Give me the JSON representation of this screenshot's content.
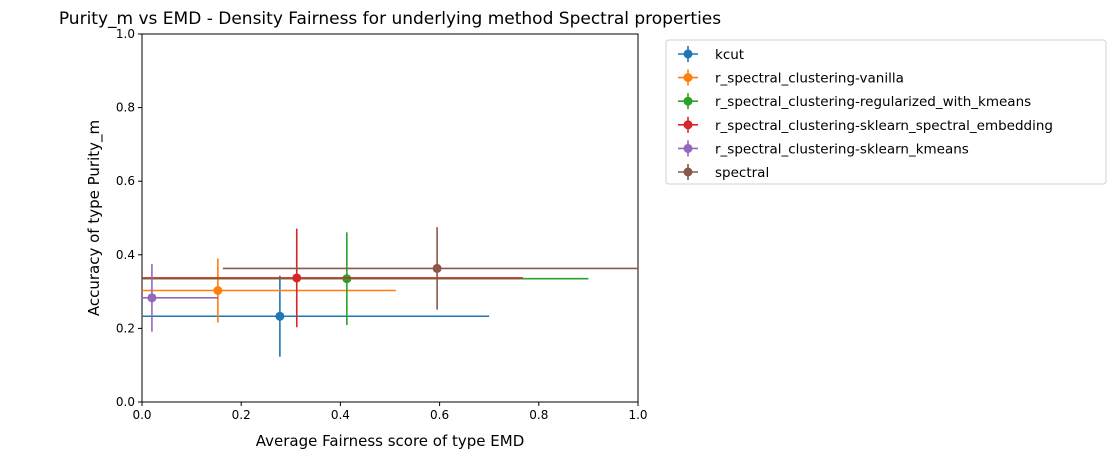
{
  "chart_data": {
    "type": "scatter",
    "title": "Purity_m vs EMD - Density Fairness for underlying method Spectral properties",
    "xlabel": "Average Fairness score of type EMD",
    "ylabel": "Accuracy of type Purity_m",
    "xlim": [
      0,
      1
    ],
    "ylim": [
      0,
      1
    ],
    "xticks": [
      "0.0",
      "0.2",
      "0.4",
      "0.6",
      "0.8",
      "1.0"
    ],
    "yticks": [
      "0.0",
      "0.2",
      "0.4",
      "0.6",
      "0.8",
      "1.0"
    ],
    "grid": false,
    "legend_position": "outside-right",
    "series": [
      {
        "name": "kcut",
        "color": "#1f77b4",
        "x": 0.278,
        "y": 0.233,
        "x_err": [
          0.278,
          0.422
        ],
        "y_err": [
          0.11,
          0.11
        ]
      },
      {
        "name": "r_spectral_clustering-vanilla",
        "color": "#ff7f0e",
        "x": 0.153,
        "y": 0.303,
        "x_err": [
          0.153,
          0.359
        ],
        "y_err": [
          0.087,
          0.087
        ]
      },
      {
        "name": "r_spectral_clustering-regularized_with_kmeans",
        "color": "#2ca02c",
        "x": 0.413,
        "y": 0.335,
        "x_err": [
          0.413,
          0.487
        ],
        "y_err": [
          0.126,
          0.126
        ]
      },
      {
        "name": "r_spectral_clustering-sklearn_spectral_embedding",
        "color": "#d62728",
        "x": 0.312,
        "y": 0.337,
        "x_err": [
          0.312,
          0.456
        ],
        "y_err": [
          0.134,
          0.134
        ]
      },
      {
        "name": "r_spectral_clustering-sklearn_kmeans",
        "color": "#9467bd",
        "x": 0.02,
        "y": 0.283,
        "x_err": [
          0.02,
          0.133
        ],
        "y_err": [
          0.092,
          0.092
        ]
      },
      {
        "name": "spectral",
        "color": "#8c564b",
        "x": 0.595,
        "y": 0.363,
        "x_err": [
          0.432,
          0.432
        ],
        "y_err": [
          0.112,
          0.112
        ]
      }
    ]
  }
}
